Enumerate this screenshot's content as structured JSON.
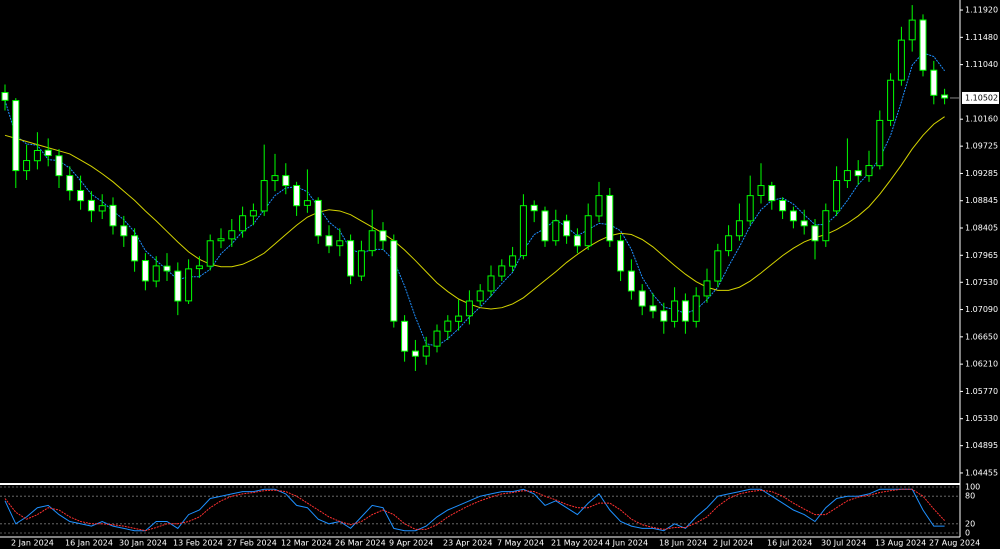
{
  "chart_data": [
    {
      "type": "candlestick",
      "categories": [
        "2 Jan 2024",
        null,
        null,
        null,
        null,
        "16 Jan 2024",
        null,
        null,
        null,
        null,
        "30 Jan 2024",
        null,
        null,
        null,
        null,
        "13 Feb 2024",
        null,
        null,
        null,
        null,
        "27 Feb 2024",
        null,
        null,
        null,
        null,
        "12 Mar 2024",
        null,
        null,
        null,
        null,
        "26 Mar 2024",
        null,
        null,
        null,
        null,
        "9 Apr 2024",
        null,
        null,
        null,
        null,
        "23 Apr 2024",
        null,
        null,
        null,
        null,
        "7 May 2024",
        null,
        null,
        null,
        null,
        "21 May 2024",
        null,
        null,
        null,
        null,
        "4 Jun 2024",
        null,
        null,
        null,
        null,
        "18 Jun 2024",
        null,
        null,
        null,
        null,
        "2 Jul 2024",
        null,
        null,
        null,
        null,
        "16 Jul 2024",
        null,
        null,
        null,
        null,
        "30 Jul 2024",
        null,
        null,
        null,
        null,
        "13 Aug 2024",
        null,
        null,
        null,
        null,
        "27 Aug 2024",
        null,
        null
      ],
      "open": [
        1.1059,
        1.1046,
        1.0933,
        1.0949,
        1.0966,
        1.0957,
        1.0925,
        1.0901,
        1.0885,
        1.0868,
        1.0877,
        1.0844,
        1.0828,
        1.0788,
        1.0755,
        1.0779,
        1.0771,
        1.0723,
        1.0775,
        1.0779,
        1.082,
        1.0823,
        1.0836,
        1.086,
        1.0868,
        1.0917,
        1.0925,
        1.0909,
        1.0877,
        1.0885,
        1.0828,
        1.0812,
        1.082,
        1.0763,
        1.0804,
        1.0836,
        1.082,
        1.069,
        1.0642,
        1.0634,
        1.065,
        1.0674,
        1.069,
        1.0699,
        1.0723,
        1.0739,
        1.0763,
        1.0779,
        1.0796,
        1.0877,
        1.0868,
        1.082,
        1.0852,
        1.0828,
        1.0812,
        1.086,
        1.0893,
        1.082,
        1.0771,
        1.0739,
        1.0715,
        1.0707,
        1.069,
        1.0723,
        1.069,
        1.0731,
        1.0755,
        1.0804,
        1.0828,
        1.0852,
        1.0893,
        1.0909,
        1.0885,
        1.0868,
        1.0852,
        1.0844,
        1.082,
        1.0868,
        1.0917,
        1.0933,
        1.0925,
        1.0941,
        1.1014,
        1.1079,
        1.1144,
        1.1176,
        1.1095,
        1.1055
      ],
      "high": [
        1.1072,
        1.105,
        1.0975,
        1.0995,
        1.0985,
        1.0968,
        1.094,
        1.0925,
        1.09,
        1.0895,
        1.089,
        1.086,
        1.084,
        1.08,
        1.0795,
        1.08,
        1.0785,
        1.079,
        1.0795,
        1.083,
        1.084,
        1.0855,
        1.0875,
        1.088,
        1.0975,
        1.096,
        1.0945,
        1.0915,
        1.0935,
        1.089,
        1.0845,
        1.084,
        1.083,
        1.082,
        1.087,
        1.085,
        1.083,
        1.07,
        1.066,
        1.0665,
        1.0685,
        1.07,
        1.0725,
        1.074,
        1.075,
        1.078,
        1.079,
        1.081,
        1.0895,
        1.0885,
        1.0875,
        1.087,
        1.0862,
        1.084,
        1.088,
        1.0915,
        1.0905,
        1.083,
        1.079,
        1.075,
        1.0735,
        1.072,
        1.0745,
        1.0735,
        1.0745,
        1.0775,
        1.0815,
        1.0845,
        1.088,
        1.0925,
        1.0945,
        1.0915,
        1.089,
        1.0875,
        1.087,
        1.0855,
        1.088,
        1.094,
        1.0985,
        1.095,
        1.0965,
        1.103,
        1.109,
        1.1165,
        1.12,
        1.1185,
        1.111,
        1.1065
      ],
      "low": [
        1.103,
        1.0905,
        1.0918,
        1.0935,
        1.094,
        1.0905,
        1.0885,
        1.087,
        1.085,
        1.0855,
        1.083,
        1.081,
        1.077,
        1.074,
        1.0745,
        1.0755,
        1.07,
        1.0718,
        1.076,
        1.0772,
        1.0808,
        1.081,
        1.0825,
        1.0845,
        1.086,
        1.09,
        1.0895,
        1.086,
        1.0865,
        1.0815,
        1.08,
        1.0795,
        1.075,
        1.0755,
        1.0795,
        1.0805,
        1.068,
        1.0625,
        1.061,
        1.062,
        1.064,
        1.066,
        1.0675,
        1.0685,
        1.0715,
        1.073,
        1.0755,
        1.077,
        1.079,
        1.085,
        1.081,
        1.0812,
        1.0815,
        1.08,
        1.0805,
        1.085,
        1.081,
        1.0755,
        1.0725,
        1.07,
        1.0695,
        1.067,
        1.068,
        1.067,
        1.068,
        1.072,
        1.0745,
        1.0795,
        1.082,
        1.0845,
        1.088,
        1.087,
        1.0855,
        1.084,
        1.083,
        1.079,
        1.081,
        1.086,
        1.0905,
        1.091,
        1.0915,
        1.0935,
        1.1005,
        1.107,
        1.1125,
        1.1085,
        1.104,
        1.104
      ],
      "close": [
        1.10464,
        1.09331,
        1.09493,
        1.09655,
        1.09574,
        1.0925,
        1.09008,
        1.08846,
        1.08684,
        1.08765,
        1.08441,
        1.0828,
        1.07875,
        1.07552,
        1.07794,
        1.07713,
        1.07228,
        1.07746,
        1.07794,
        1.08199,
        1.08231,
        1.08361,
        1.08603,
        1.08684,
        1.0917,
        1.0925,
        1.09089,
        1.08765,
        1.08846,
        1.0828,
        1.08118,
        1.08199,
        1.07632,
        1.08037,
        1.08361,
        1.08199,
        1.06904,
        1.06419,
        1.06338,
        1.065,
        1.06743,
        1.06904,
        1.06985,
        1.07228,
        1.0739,
        1.07632,
        1.07794,
        1.07956,
        1.08765,
        1.08684,
        1.08199,
        1.08522,
        1.0828,
        1.08118,
        1.08603,
        1.08927,
        1.08199,
        1.07713,
        1.0739,
        1.07147,
        1.07066,
        1.06904,
        1.07228,
        1.06904,
        1.07309,
        1.07552,
        1.08037,
        1.0828,
        1.08522,
        1.08927,
        1.09089,
        1.08846,
        1.08684,
        1.08522,
        1.08441,
        1.08199,
        1.08684,
        1.0917,
        1.09331,
        1.0925,
        1.09412,
        1.1014,
        1.10788,
        1.11435,
        1.11758,
        1.10949,
        1.10545,
        1.10502
      ],
      "up_color": "#00ff00",
      "down_color": "#ffffff",
      "series": [
        {
          "color": "#1e90ff",
          "values": [
            1.1046,
            1.099,
            1.0976,
            1.0974,
            1.0951,
            1.0949,
            1.0937,
            1.0917,
            1.0895,
            1.0883,
            1.0868,
            1.0854,
            1.0834,
            1.0804,
            1.0788,
            1.0773,
            1.0757,
            1.0762,
            1.0762,
            1.0774,
            1.0799,
            1.0815,
            1.0835,
            1.0847,
            1.087,
            1.0893,
            1.0905,
            1.0907,
            1.0899,
            1.0875,
            1.085,
            1.0836,
            1.0806,
            1.08,
            1.0806,
            1.0806,
            1.0788,
            1.0747,
            1.0697,
            1.0654,
            1.065,
            1.0662,
            1.0678,
            1.0697,
            1.0713,
            1.0731,
            1.0751,
            1.0769,
            1.0804,
            1.083,
            1.084,
            1.0854,
            1.0842,
            1.0828,
            1.0838,
            1.0848,
            1.0846,
            1.0836,
            1.0806,
            1.0761,
            1.0733,
            1.0713,
            1.0709,
            1.0703,
            1.0709,
            1.0725,
            1.0745,
            1.0779,
            1.081,
            1.0844,
            1.087,
            1.0885,
            1.0889,
            1.0879,
            1.0862,
            1.0846,
            1.0846,
            1.0862,
            1.0885,
            1.0911,
            1.0929,
            1.0953,
            1.099,
            1.1044,
            1.1103,
            1.1123,
            1.1117,
            1.1094
          ]
        },
        {
          "color": "#d4d400",
          "values": [
            1.099,
            1.0985,
            1.098,
            1.0975,
            1.097,
            1.0965,
            1.096,
            1.095,
            1.094,
            1.0928,
            1.0915,
            1.09,
            1.0885,
            1.0868,
            1.0852,
            1.0835,
            1.0818,
            1.0802,
            1.079,
            1.0782,
            1.0778,
            1.0778,
            1.0782,
            1.079,
            1.08,
            1.0815,
            1.083,
            1.0845,
            1.0858,
            1.0866,
            1.087,
            1.0868,
            1.0862,
            1.0852,
            1.0842,
            1.0832,
            1.082,
            1.0805,
            1.0788,
            1.077,
            1.0752,
            1.0738,
            1.0726,
            1.0718,
            1.0712,
            1.071,
            1.0712,
            1.0718,
            1.0728,
            1.0742,
            1.0756,
            1.077,
            1.0785,
            1.0798,
            1.081,
            1.082,
            1.0828,
            1.0832,
            1.083,
            1.0822,
            1.081,
            1.0795,
            1.078,
            1.0766,
            1.0754,
            1.0745,
            1.074,
            1.074,
            1.0745,
            1.0755,
            1.0768,
            1.0782,
            1.0796,
            1.0808,
            1.0818,
            1.0825,
            1.083,
            1.0838,
            1.0848,
            1.086,
            1.0875,
            1.0895,
            1.0918,
            1.0942,
            1.0968,
            1.099,
            1.1008,
            1.102
          ]
        }
      ],
      "ylim": [
        1.04293,
        1.12082
      ],
      "yticks": [
        {
          "value": 1.1192,
          "label": "1.11920"
        },
        {
          "value": 1.1148,
          "label": "1.11480"
        },
        {
          "value": 1.1104,
          "label": "1.11040"
        },
        {
          "value": 1.1016,
          "label": "1.10160"
        },
        1.09725,
        1.09285,
        1.08845,
        1.08405,
        1.07965,
        {
          "value": 1.0753,
          "label": "1.07530"
        },
        {
          "value": 1.0709,
          "label": "1.07090"
        },
        {
          "value": 1.0665,
          "label": "1.06650"
        },
        {
          "value": 1.0621,
          "label": "1.06210"
        },
        {
          "value": 1.0577,
          "label": "1.05770"
        },
        {
          "value": 1.0533,
          "label": "1.05330"
        },
        1.04895,
        1.04455
      ],
      "last_price": 1.10502
    },
    {
      "type": "line",
      "series": [
        {
          "color": "#1e90ff",
          "values": [
            70,
            20,
            35,
            55,
            60,
            40,
            25,
            20,
            15,
            25,
            15,
            10,
            5,
            5,
            25,
            25,
            10,
            40,
            50,
            75,
            80,
            85,
            90,
            90,
            95,
            95,
            85,
            60,
            55,
            30,
            20,
            25,
            10,
            35,
            60,
            55,
            10,
            5,
            5,
            15,
            35,
            50,
            60,
            70,
            80,
            85,
            90,
            90,
            95,
            85,
            60,
            70,
            55,
            40,
            65,
            85,
            50,
            25,
            15,
            10,
            10,
            5,
            20,
            10,
            35,
            55,
            80,
            85,
            90,
            95,
            95,
            80,
            65,
            50,
            40,
            25,
            55,
            75,
            80,
            80,
            85,
            95,
            95,
            95,
            95,
            50,
            15,
            15
          ]
        },
        {
          "color": "#ff3030",
          "values": [
            75,
            45,
            30,
            40,
            55,
            50,
            35,
            25,
            20,
            20,
            18,
            15,
            10,
            5,
            12,
            20,
            20,
            25,
            35,
            55,
            70,
            80,
            85,
            88,
            92,
            93,
            90,
            80,
            65,
            50,
            35,
            25,
            18,
            25,
            40,
            50,
            40,
            20,
            8,
            8,
            18,
            35,
            48,
            60,
            70,
            78,
            85,
            88,
            92,
            90,
            80,
            72,
            62,
            55,
            55,
            65,
            65,
            50,
            30,
            18,
            12,
            8,
            12,
            12,
            22,
            35,
            58,
            75,
            85,
            90,
            93,
            90,
            80,
            65,
            52,
            40,
            40,
            55,
            70,
            78,
            82,
            88,
            92,
            95,
            95,
            80,
            52,
            27
          ]
        }
      ],
      "ylim": [
        0,
        100
      ],
      "yticks": [
        0,
        20,
        80,
        100
      ]
    }
  ]
}
